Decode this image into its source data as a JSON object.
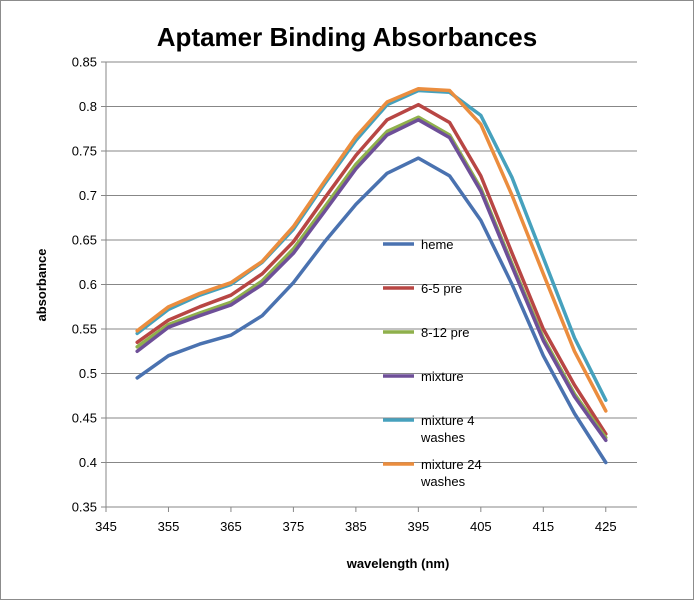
{
  "chart_data": {
    "type": "line",
    "title": "Aptamer Binding Absorbances",
    "xlabel": "wavelength (nm)",
    "ylabel": "absorbance",
    "xlim": [
      345,
      430
    ],
    "ylim": [
      0.35,
      0.85
    ],
    "x_ticks": [
      "345",
      "355",
      "365",
      "375",
      "385",
      "395",
      "405",
      "415",
      "425"
    ],
    "y_ticks": [
      "0.35",
      "0.4",
      "0.45",
      "0.5",
      "0.55",
      "0.6",
      "0.65",
      "0.7",
      "0.75",
      "0.8",
      "0.85"
    ],
    "grid": "horizontal",
    "legend_position": "inside-center",
    "x": [
      350,
      355,
      360,
      365,
      370,
      375,
      380,
      385,
      390,
      395,
      400,
      405,
      410,
      415,
      420,
      425
    ],
    "series": [
      {
        "name": "heme",
        "color": "#4A72B0",
        "values": [
          0.495,
          0.52,
          0.533,
          0.543,
          0.565,
          0.602,
          0.648,
          0.69,
          0.725,
          0.742,
          0.722,
          0.672,
          0.6,
          0.52,
          0.455,
          0.4
        ]
      },
      {
        "name": "6-5 pre",
        "color": "#B84644",
        "values": [
          0.535,
          0.56,
          0.575,
          0.588,
          0.612,
          0.648,
          0.697,
          0.745,
          0.785,
          0.802,
          0.782,
          0.722,
          0.635,
          0.55,
          0.487,
          0.432
        ]
      },
      {
        "name": "8-12 pre",
        "color": "#8FB04C",
        "values": [
          0.53,
          0.555,
          0.568,
          0.58,
          0.604,
          0.64,
          0.687,
          0.735,
          0.772,
          0.788,
          0.768,
          0.708,
          0.623,
          0.54,
          0.477,
          0.428
        ]
      },
      {
        "name": "mixture",
        "color": "#6E4F98",
        "values": [
          0.525,
          0.552,
          0.565,
          0.577,
          0.6,
          0.635,
          0.682,
          0.73,
          0.768,
          0.785,
          0.765,
          0.705,
          0.62,
          0.537,
          0.474,
          0.425
        ]
      },
      {
        "name": "mixture 4 washes",
        "color": "#46A1BD",
        "values": [
          0.545,
          0.572,
          0.588,
          0.6,
          0.625,
          0.662,
          0.713,
          0.762,
          0.802,
          0.818,
          0.816,
          0.79,
          0.72,
          0.63,
          0.54,
          0.47
        ]
      },
      {
        "name": "mixture 24 washes",
        "color": "#EB8D3E",
        "values": [
          0.548,
          0.575,
          0.59,
          0.602,
          0.626,
          0.665,
          0.716,
          0.766,
          0.805,
          0.82,
          0.818,
          0.78,
          0.7,
          0.612,
          0.525,
          0.458
        ]
      }
    ],
    "legend_labels": [
      [
        "heme"
      ],
      [
        "6-5 pre"
      ],
      [
        "8-12 pre"
      ],
      [
        "mixture"
      ],
      [
        "mixture 4",
        "washes"
      ],
      [
        "mixture 24",
        "washes"
      ]
    ]
  }
}
